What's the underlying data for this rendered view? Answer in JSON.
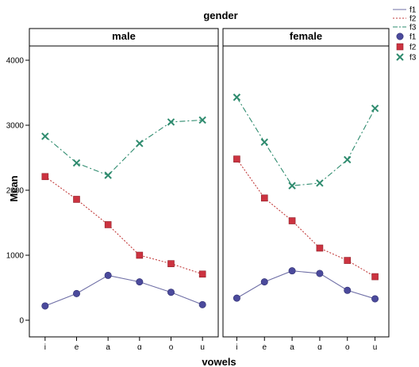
{
  "chart_data": {
    "type": "line",
    "title": "gender",
    "xlabel": "vowels",
    "ylabel": "Mean",
    "ylim": [
      0,
      4000
    ],
    "yticks": [
      "0",
      "1000",
      "2000",
      "3000",
      "4000"
    ],
    "categories": [
      "i",
      "e",
      "a",
      "ɑ",
      "o",
      "u"
    ],
    "legend_position": "top-right",
    "grid": false,
    "panels": [
      {
        "title": "male",
        "series": [
          {
            "name": "f1",
            "values": [
              220,
              410,
              690,
              590,
              430,
              240
            ]
          },
          {
            "name": "f2",
            "values": [
              2210,
              1860,
              1470,
              1000,
              870,
              710
            ]
          },
          {
            "name": "f3",
            "values": [
              2830,
              2420,
              2230,
              2720,
              3050,
              3080
            ]
          }
        ]
      },
      {
        "title": "female",
        "series": [
          {
            "name": "f1",
            "values": [
              340,
              590,
              760,
              720,
              460,
              330
            ]
          },
          {
            "name": "f2",
            "values": [
              2480,
              1880,
              1530,
              1110,
              920,
              670
            ]
          },
          {
            "name": "f3",
            "values": [
              3430,
              2740,
              2070,
              2110,
              2470,
              3260
            ]
          }
        ]
      }
    ],
    "styles": {
      "f1": {
        "color": "#4b4a9c",
        "marker": "circle",
        "line": "solid",
        "line_color": "#6f6fa6"
      },
      "f2": {
        "color": "#cc3340",
        "marker": "square",
        "line": "dotted",
        "line_color": "#c23b3b"
      },
      "f3": {
        "color": "#2e8b6e",
        "marker": "x",
        "line": "dash-dot",
        "line_color": "#2e8b6e"
      }
    }
  }
}
